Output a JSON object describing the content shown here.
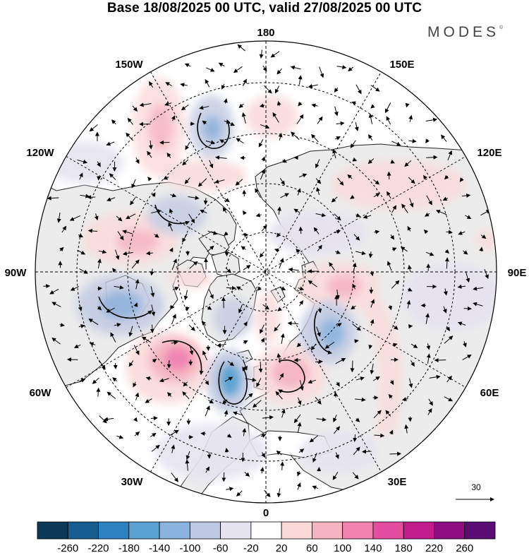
{
  "title": "Base 18/08/2025 00 UTC, valid 27/08/2025 00 UTC",
  "brand": "MODES",
  "brand_mark": "©",
  "map": {
    "projection": "north-polar-stereographic",
    "longitude_labels": [
      {
        "id": "180",
        "text": "180"
      },
      {
        "id": "150W",
        "text": "150W"
      },
      {
        "id": "150E",
        "text": "150E"
      },
      {
        "id": "120W",
        "text": "120W"
      },
      {
        "id": "120E",
        "text": "120E"
      },
      {
        "id": "90W",
        "text": "90W"
      },
      {
        "id": "90E",
        "text": "90E"
      },
      {
        "id": "60W",
        "text": "60W"
      },
      {
        "id": "60E",
        "text": "60E"
      },
      {
        "id": "30W",
        "text": "30W"
      },
      {
        "id": "30E",
        "text": "30E"
      },
      {
        "id": "0",
        "text": "0"
      }
    ],
    "vector_reference": {
      "value": "30"
    },
    "colors": {
      "land": "#ececec",
      "ocean": "#ffffff",
      "coast": "#222222",
      "grid": "#000000",
      "positive_light": "#fbdcdc",
      "positive_mid": "#f6b6c2",
      "positive_strong": "#ef7fb0",
      "negative_light": "#e6e3ef",
      "negative_mid": "#c4cce3",
      "negative_strong": "#89aed8"
    }
  },
  "colorbar": {
    "colors": [
      "#0b3a57",
      "#155d8f",
      "#2b82bf",
      "#5aa2d2",
      "#8ab3dd",
      "#c0c9e3",
      "#e5e3f0",
      "#ffffff",
      "#fbd9d9",
      "#f6b3c0",
      "#f283ae",
      "#e34ea0",
      "#c21c8c",
      "#8f0d81",
      "#5a0c72"
    ],
    "tick_labels": [
      "-260",
      "-220",
      "-180",
      "-140",
      "-100",
      "-60",
      "-20",
      "20",
      "60",
      "100",
      "140",
      "180",
      "220",
      "260"
    ]
  }
}
